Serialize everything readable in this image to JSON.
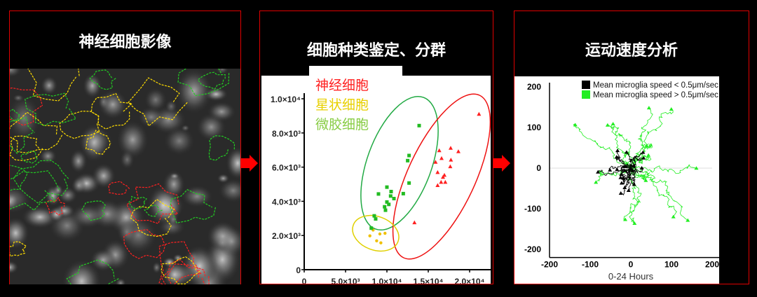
{
  "panels": [
    {
      "title": "神经细胞影像"
    },
    {
      "title": "细胞种类鉴定、分群"
    },
    {
      "title": "运动速度分析"
    }
  ],
  "colors": {
    "border": "#e00000",
    "arrow": "#ff0000",
    "neuron": "#ff2020",
    "astrocyte": "#e8d000",
    "microglia": "#22bb22",
    "slow": "#000000",
    "fast": "#22ee22"
  },
  "chart_data": [
    {
      "type": "scatter",
      "xlim": [
        0,
        23000
      ],
      "ylim": [
        0,
        10000
      ],
      "x_ticks": [
        "0",
        "5.0×10³",
        "1.0×10⁴",
        "1.5×10⁴",
        "2.0×10⁴"
      ],
      "x_tick_values": [
        0,
        5000,
        10000,
        15000,
        20000
      ],
      "y_ticks": [
        "0",
        "2.0×10³",
        "4.0×10³",
        "6.0×10³",
        "8.0×10³",
        "1.0×10⁴"
      ],
      "y_tick_values": [
        0,
        2000,
        4000,
        6000,
        8000,
        10000
      ],
      "legend_placement": "top-left",
      "series": [
        {
          "name": "神经细胞",
          "color": "#ff2020",
          "marker": "triangle",
          "points": [
            [
              21130,
              9110
            ],
            [
              16330,
              6980
            ],
            [
              17710,
              7120
            ],
            [
              18640,
              6920
            ],
            [
              16610,
              6520
            ],
            [
              17740,
              6430
            ],
            [
              15880,
              6300
            ],
            [
              17660,
              6040
            ],
            [
              16130,
              5700
            ],
            [
              16950,
              5540
            ],
            [
              16780,
              5420
            ],
            [
              16550,
              5130
            ],
            [
              17060,
              5130
            ],
            [
              16130,
              4940
            ],
            [
              13330,
              2760
            ]
          ]
        },
        {
          "name": "星状细胞",
          "color": "#f0c000",
          "marker": "circle",
          "points": [
            [
              7940,
              1980
            ],
            [
              8330,
              2320
            ],
            [
              8760,
              1690
            ],
            [
              9150,
              2090
            ],
            [
              9270,
              1570
            ],
            [
              9770,
              2130
            ]
          ]
        },
        {
          "name": "微胶细胞",
          "color": "#22bb22",
          "marker": "square",
          "points": [
            [
              13900,
              8430
            ],
            [
              12680,
              6680
            ],
            [
              12510,
              6380
            ],
            [
              12680,
              5070
            ],
            [
              11980,
              4450
            ],
            [
              10000,
              4830
            ],
            [
              10510,
              4570
            ],
            [
              10450,
              4310
            ],
            [
              10850,
              4160
            ],
            [
              8980,
              4430
            ],
            [
              10000,
              3960
            ],
            [
              10230,
              3820
            ],
            [
              9720,
              3680
            ],
            [
              9830,
              3480
            ],
            [
              8470,
              3150
            ],
            [
              8640,
              2970
            ],
            [
              8110,
              2430
            ]
          ]
        }
      ],
      "legend_colors": [
        "#ff2020",
        "#e8d000",
        "#88cc44"
      ]
    },
    {
      "type": "line",
      "xlabel": "0-24 Hours",
      "xlim": [
        -200,
        200
      ],
      "ylim": [
        -200,
        200
      ],
      "x_ticks": [
        "-200",
        "-100",
        "0",
        "100",
        "200"
      ],
      "x_tick_values": [
        -200,
        -100,
        0,
        100,
        200
      ],
      "y_ticks": [
        "200",
        "100",
        "0",
        "-100",
        "-200"
      ],
      "y_tick_values": [
        200,
        100,
        0,
        -100,
        -200
      ],
      "legend_placement": "top-right",
      "series": [
        {
          "name": "Mean microglia speed < 0.5μm/sec",
          "color": "#000000"
        },
        {
          "name": "Mean microglia speed > 0.5μm/sec",
          "color": "#22ee22"
        }
      ]
    }
  ]
}
